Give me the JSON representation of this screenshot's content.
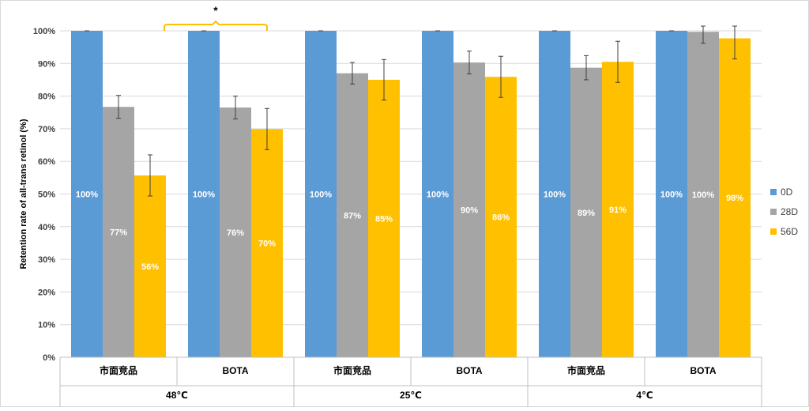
{
  "chart_data": {
    "type": "bar",
    "ylabel": "Retention rate of all-trans retinol (%)",
    "ylim": [
      0,
      100
    ],
    "yticks": [
      "0%",
      "10%",
      "20%",
      "30%",
      "40%",
      "50%",
      "60%",
      "70%",
      "80%",
      "90%",
      "100%"
    ],
    "grid": true,
    "legend_position": "right",
    "groups": [
      {
        "label": "48℃",
        "categories": [
          "市面竞品",
          "BOTA"
        ]
      },
      {
        "label": "25℃",
        "categories": [
          "市面竞品",
          "BOTA"
        ]
      },
      {
        "label": "4℃",
        "categories": [
          "市面竞品",
          "BOTA"
        ]
      }
    ],
    "categories": [
      "市面竞品",
      "BOTA",
      "市面竞品",
      "BOTA",
      "市面竞品",
      "BOTA"
    ],
    "series": [
      {
        "name": "0D",
        "color": "#5b9bd5",
        "values": [
          100,
          100,
          100,
          100,
          100,
          100
        ],
        "labels": [
          "100%",
          "100%",
          "100%",
          "100%",
          "100%",
          "100%"
        ],
        "errors": [
          0,
          0,
          0,
          0,
          0,
          0
        ]
      },
      {
        "name": "28D",
        "color": "#a5a5a5",
        "values": [
          76.7,
          76.5,
          87,
          90.3,
          88.7,
          99.7
        ],
        "labels": [
          "77%",
          "76%",
          "87%",
          "90%",
          "89%",
          "100%"
        ],
        "errors": [
          3.5,
          3.5,
          3.3,
          3.5,
          3.7,
          3.5
        ]
      },
      {
        "name": "56D",
        "color": "#ffc000",
        "values": [
          55.7,
          69.9,
          85,
          85.9,
          90.5,
          97.7
        ],
        "labels": [
          "56%",
          "70%",
          "85%",
          "86%",
          "91%",
          "98%"
        ],
        "errors": [
          6.3,
          6.3,
          6.2,
          6.3,
          6.3,
          6.3
        ]
      }
    ],
    "annotations": [
      {
        "text": "*",
        "type": "significance-bracket",
        "between": [
          "48℃ 市面竞品",
          "48℃ BOTA"
        ]
      }
    ]
  }
}
